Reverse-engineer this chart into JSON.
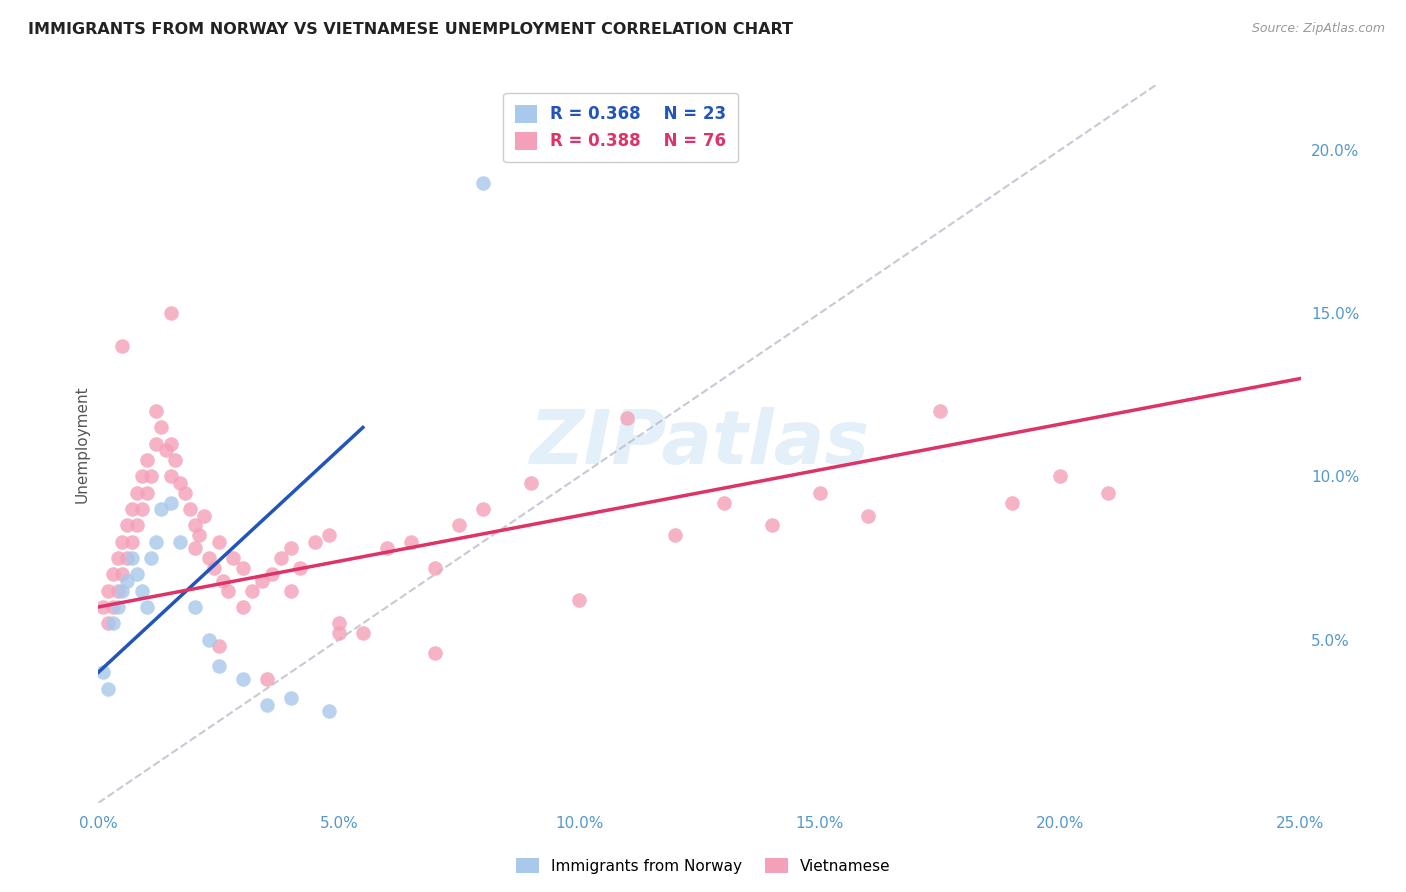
{
  "title": "IMMIGRANTS FROM NORWAY VS VIETNAMESE UNEMPLOYMENT CORRELATION CHART",
  "source": "Source: ZipAtlas.com",
  "ylabel": "Unemployment",
  "xlim": [
    0.0,
    0.25
  ],
  "ylim": [
    0.0,
    0.22
  ],
  "xticks": [
    0.0,
    0.05,
    0.1,
    0.15,
    0.2,
    0.25
  ],
  "xticklabels": [
    "0.0%",
    "5.0%",
    "10.0%",
    "15.0%",
    "20.0%",
    "25.0%"
  ],
  "yticks_right": [
    0.05,
    0.1,
    0.15,
    0.2
  ],
  "yticklabels_right": [
    "5.0%",
    "10.0%",
    "15.0%",
    "20.0%"
  ],
  "norway_R": 0.368,
  "norway_N": 23,
  "vietnamese_R": 0.388,
  "vietnamese_N": 76,
  "norway_color": "#A8C8EC",
  "vietnamese_color": "#F4A0B8",
  "norway_line_color": "#2255BB",
  "vietnamese_line_color": "#DD3366",
  "diagonal_color": "#BBBBCC",
  "background_color": "#FFFFFF",
  "grid_color": "#DDDDDD",
  "title_color": "#222222",
  "axis_tick_color": "#5599CC",
  "norway_x": [
    0.001,
    0.002,
    0.003,
    0.004,
    0.005,
    0.006,
    0.007,
    0.008,
    0.009,
    0.01,
    0.011,
    0.012,
    0.013,
    0.015,
    0.017,
    0.02,
    0.023,
    0.025,
    0.03,
    0.035,
    0.04,
    0.048,
    0.08
  ],
  "norway_y": [
    0.04,
    0.035,
    0.055,
    0.06,
    0.065,
    0.068,
    0.075,
    0.07,
    0.065,
    0.06,
    0.075,
    0.08,
    0.09,
    0.092,
    0.08,
    0.06,
    0.05,
    0.042,
    0.038,
    0.03,
    0.032,
    0.028,
    0.19
  ],
  "vietnamese_x": [
    0.001,
    0.002,
    0.002,
    0.003,
    0.003,
    0.004,
    0.004,
    0.005,
    0.005,
    0.006,
    0.006,
    0.007,
    0.007,
    0.008,
    0.008,
    0.009,
    0.009,
    0.01,
    0.01,
    0.011,
    0.012,
    0.012,
    0.013,
    0.014,
    0.015,
    0.015,
    0.016,
    0.017,
    0.018,
    0.019,
    0.02,
    0.02,
    0.021,
    0.022,
    0.023,
    0.024,
    0.025,
    0.026,
    0.027,
    0.028,
    0.03,
    0.03,
    0.032,
    0.034,
    0.036,
    0.038,
    0.04,
    0.04,
    0.042,
    0.045,
    0.048,
    0.05,
    0.055,
    0.06,
    0.065,
    0.07,
    0.075,
    0.08,
    0.09,
    0.1,
    0.11,
    0.12,
    0.13,
    0.14,
    0.15,
    0.16,
    0.175,
    0.19,
    0.2,
    0.21,
    0.005,
    0.015,
    0.025,
    0.035,
    0.05,
    0.07
  ],
  "vietnamese_y": [
    0.06,
    0.065,
    0.055,
    0.07,
    0.06,
    0.075,
    0.065,
    0.08,
    0.07,
    0.085,
    0.075,
    0.09,
    0.08,
    0.095,
    0.085,
    0.1,
    0.09,
    0.105,
    0.095,
    0.1,
    0.12,
    0.11,
    0.115,
    0.108,
    0.11,
    0.1,
    0.105,
    0.098,
    0.095,
    0.09,
    0.085,
    0.078,
    0.082,
    0.088,
    0.075,
    0.072,
    0.08,
    0.068,
    0.065,
    0.075,
    0.072,
    0.06,
    0.065,
    0.068,
    0.07,
    0.075,
    0.078,
    0.065,
    0.072,
    0.08,
    0.082,
    0.055,
    0.052,
    0.078,
    0.08,
    0.072,
    0.085,
    0.09,
    0.098,
    0.062,
    0.118,
    0.082,
    0.092,
    0.085,
    0.095,
    0.088,
    0.12,
    0.092,
    0.1,
    0.095,
    0.14,
    0.15,
    0.048,
    0.038,
    0.052,
    0.046
  ]
}
